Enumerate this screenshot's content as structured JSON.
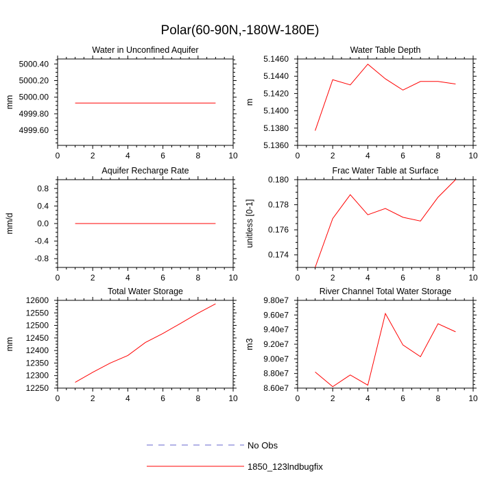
{
  "figure_title": "Polar(60-90N,-180W-180E)",
  "legend": {
    "items": [
      {
        "label": "No Obs",
        "color": "#6666cc",
        "style": "dashed"
      },
      {
        "label": "1850_123lndbugfix",
        "color": "#ff0000",
        "style": "solid"
      }
    ]
  },
  "chart_data": [
    {
      "id": "water-unconfined-aquifer",
      "type": "line",
      "title": "Water in Unconfined Aquifer",
      "xlabel": "",
      "ylabel": "mm",
      "xlim": [
        0,
        10
      ],
      "ylim": [
        4999.42,
        5000.46
      ],
      "xticks": [
        0,
        2,
        4,
        6,
        8,
        10
      ],
      "yticks": [
        4999.6,
        4999.8,
        5000.0,
        5000.2,
        5000.4
      ],
      "ytick_labels": [
        "4999.60",
        "4999.80",
        "5000.00",
        "5000.20",
        "5000.40"
      ],
      "series": [
        {
          "name": "1850_123lndbugfix",
          "color": "#ff0000",
          "x": [
            1,
            2,
            3,
            4,
            5,
            6,
            7,
            8,
            9
          ],
          "y": [
            4999.93,
            4999.93,
            4999.93,
            4999.93,
            4999.93,
            4999.93,
            4999.93,
            4999.93,
            4999.93
          ]
        }
      ]
    },
    {
      "id": "water-table-depth",
      "type": "line",
      "title": "Water Table Depth",
      "xlabel": "",
      "ylabel": "m",
      "xlim": [
        0,
        10
      ],
      "ylim": [
        5.136,
        5.146
      ],
      "xticks": [
        0,
        2,
        4,
        6,
        8,
        10
      ],
      "yticks": [
        5.136,
        5.138,
        5.14,
        5.142,
        5.144,
        5.146
      ],
      "ytick_labels": [
        "5.1360",
        "5.1380",
        "5.1400",
        "5.1420",
        "5.1440",
        "5.1460"
      ],
      "series": [
        {
          "name": "1850_123lndbugfix",
          "color": "#ff0000",
          "x": [
            1,
            2,
            3,
            4,
            5,
            6,
            7,
            8,
            9
          ],
          "y": [
            5.1377,
            5.1436,
            5.143,
            5.1454,
            5.1437,
            5.1424,
            5.1434,
            5.1434,
            5.1431
          ]
        }
      ]
    },
    {
      "id": "aquifer-recharge-rate",
      "type": "line",
      "title": "Aquifer Recharge Rate",
      "xlabel": "",
      "ylabel": "mm/d",
      "xlim": [
        0,
        10
      ],
      "ylim": [
        -1.0,
        1.0
      ],
      "xticks": [
        0,
        2,
        4,
        6,
        8,
        10
      ],
      "yticks": [
        -0.8,
        -0.4,
        0.0,
        0.4,
        0.8
      ],
      "ytick_labels": [
        "-0.8",
        "-0.4",
        "0.0",
        "0.4",
        "0.8"
      ],
      "series": [
        {
          "name": "1850_123lndbugfix",
          "color": "#ff0000",
          "x": [
            1,
            2,
            3,
            4,
            5,
            6,
            7,
            8,
            9
          ],
          "y": [
            0,
            0,
            0,
            0,
            0,
            0,
            0,
            0,
            0
          ]
        }
      ]
    },
    {
      "id": "frac-water-table-surface",
      "type": "line",
      "title": "Frac Water Table at Surface",
      "xlabel": "",
      "ylabel": "unitless [0-1]",
      "xlim": [
        0,
        10
      ],
      "ylim": [
        0.173,
        0.18
      ],
      "xticks": [
        0,
        2,
        4,
        6,
        8,
        10
      ],
      "yticks": [
        0.174,
        0.176,
        0.178,
        0.18
      ],
      "ytick_labels": [
        "0.174",
        "0.176",
        "0.178",
        "0.180"
      ],
      "series": [
        {
          "name": "1850_123lndbugfix",
          "color": "#ff0000",
          "x": [
            1,
            2,
            3,
            4,
            5,
            6,
            7,
            8,
            9
          ],
          "y": [
            0.173,
            0.1769,
            0.1788,
            0.1772,
            0.1777,
            0.177,
            0.1767,
            0.1786,
            0.18
          ]
        }
      ]
    },
    {
      "id": "total-water-storage",
      "type": "line",
      "title": "Total Water Storage",
      "xlabel": "",
      "ylabel": "mm",
      "xlim": [
        0,
        10
      ],
      "ylim": [
        12250,
        12600
      ],
      "xticks": [
        0,
        2,
        4,
        6,
        8,
        10
      ],
      "yticks": [
        12250,
        12300,
        12350,
        12400,
        12450,
        12500,
        12550,
        12600
      ],
      "ytick_labels": [
        "12250",
        "12300",
        "12350",
        "12400",
        "12450",
        "12500",
        "12550",
        "12600"
      ],
      "series": [
        {
          "name": "1850_123lndbugfix",
          "color": "#ff0000",
          "x": [
            1,
            2,
            3,
            4,
            5,
            6,
            7,
            8,
            9
          ],
          "y": [
            12273,
            12313,
            12350,
            12380,
            12432,
            12468,
            12508,
            12549,
            12586
          ]
        }
      ]
    },
    {
      "id": "river-channel-storage",
      "type": "line",
      "title": "River Channel Total Water Storage",
      "xlabel": "",
      "ylabel": "m3",
      "xlim": [
        0,
        10
      ],
      "ylim": [
        86000000,
        98000000
      ],
      "xticks": [
        0,
        2,
        4,
        6,
        8,
        10
      ],
      "yticks": [
        86000000,
        88000000,
        90000000,
        92000000,
        94000000,
        96000000,
        98000000
      ],
      "ytick_labels": [
        "8.60e7",
        "8.80e7",
        "9.00e7",
        "9.20e7",
        "9.40e7",
        "9.60e7",
        "9.80e7"
      ],
      "series": [
        {
          "name": "1850_123lndbugfix",
          "color": "#ff0000",
          "x": [
            1,
            2,
            3,
            4,
            5,
            6,
            7,
            8,
            9
          ],
          "y": [
            88200000,
            86200000,
            87800000,
            86400000,
            96200000,
            91900000,
            90300000,
            94800000,
            93700000
          ]
        }
      ]
    }
  ]
}
